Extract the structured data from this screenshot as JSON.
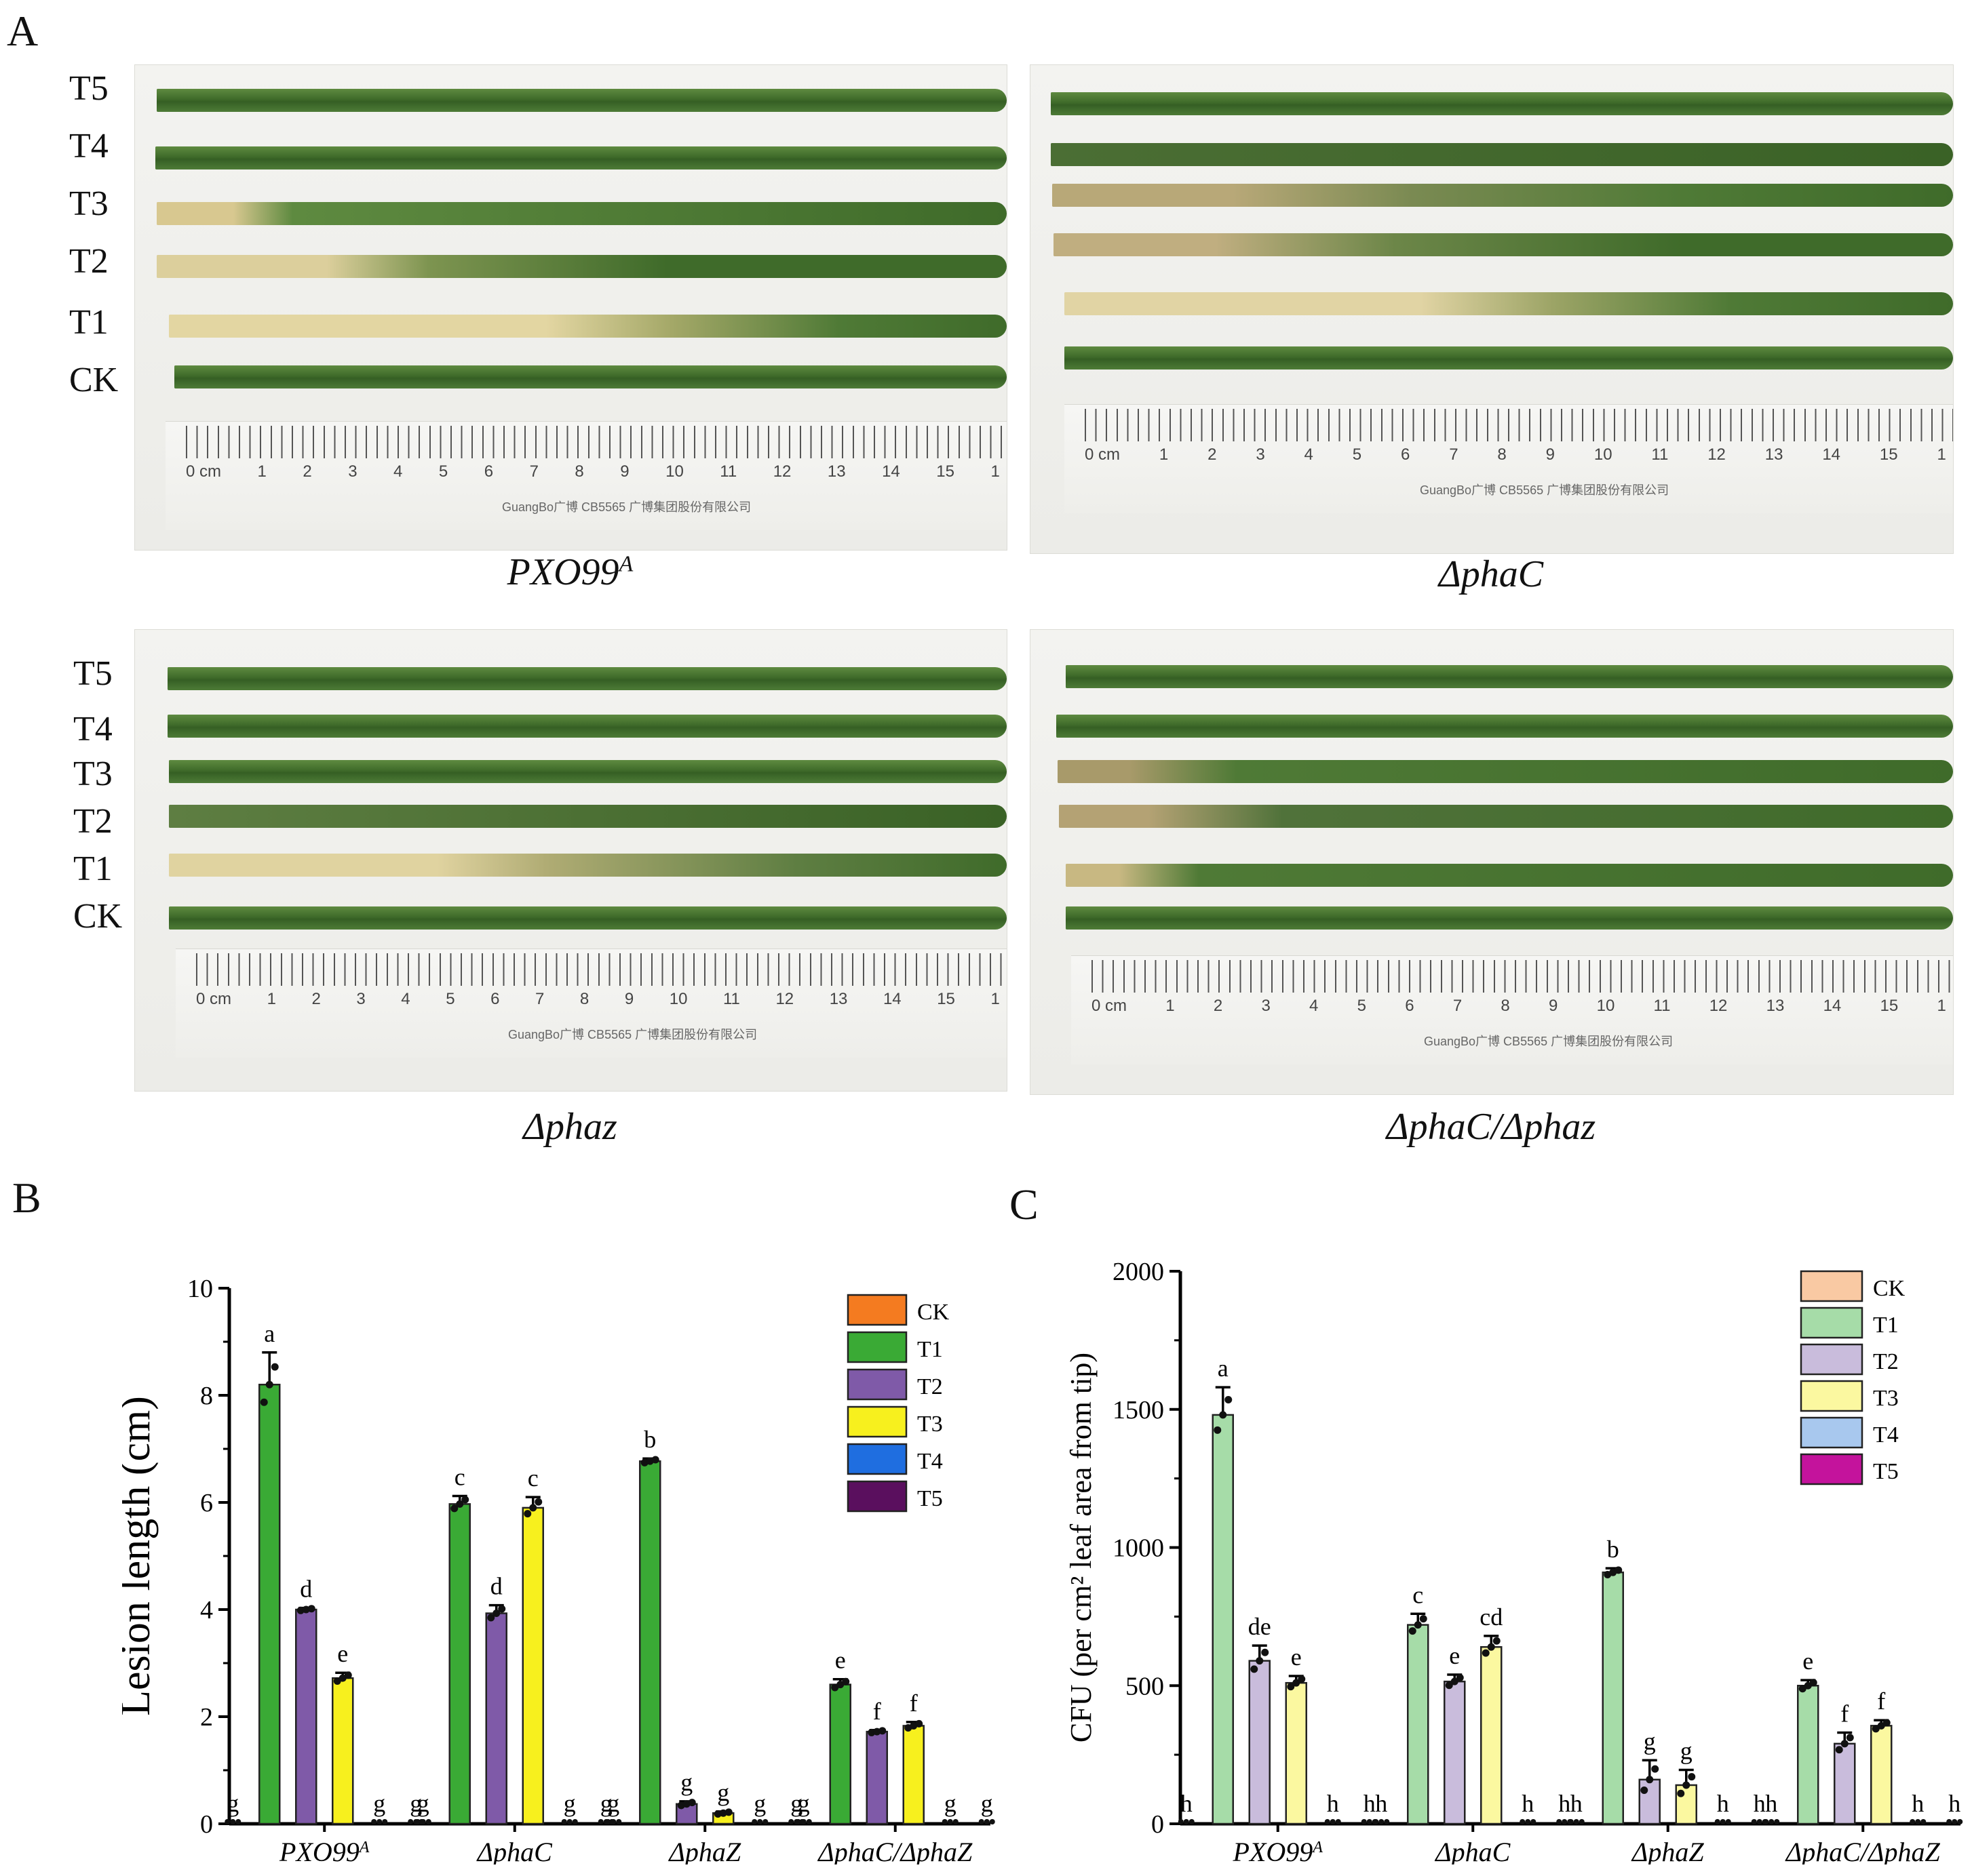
{
  "panel_labels": {
    "a": "A",
    "b": "B",
    "c": "C"
  },
  "photo_panels": [
    {
      "caption": "PXO99",
      "caption_sup": "A",
      "row_labels": [
        "T5",
        "T4",
        "T3",
        "T2",
        "T1",
        "CK"
      ],
      "ruler_unit": "0 cm",
      "ruler_numbers": [
        "1",
        "2",
        "3",
        "4",
        "5",
        "6",
        "7",
        "8",
        "9",
        "10",
        "11",
        "12",
        "13",
        "14",
        "15",
        "1"
      ],
      "brand": "GuangBo广博 CB5565 广博集团股份有限公司"
    },
    {
      "caption": "ΔphaC",
      "caption_sup": "",
      "row_labels": [],
      "ruler_unit": "0 cm",
      "ruler_numbers": [
        "1",
        "2",
        "3",
        "4",
        "5",
        "6",
        "7",
        "8",
        "9",
        "10",
        "11",
        "12",
        "13",
        "14",
        "15",
        "1"
      ],
      "brand": "GuangBo广博 CB5565 广博集团股份有限公司"
    },
    {
      "caption": "Δphaz",
      "caption_sup": "",
      "row_labels": [
        "T5",
        "T4",
        "T3",
        "T2",
        "T1",
        "CK"
      ],
      "ruler_unit": "0 cm",
      "ruler_numbers": [
        "1",
        "2",
        "3",
        "4",
        "5",
        "6",
        "7",
        "8",
        "9",
        "10",
        "11",
        "12",
        "13",
        "14",
        "15",
        "1"
      ],
      "brand": "GuangBo广博 CB5565 广博集团股份有限公司"
    },
    {
      "caption": "ΔphaC/Δphaz",
      "caption_sup": "",
      "row_labels": [],
      "ruler_unit": "0 cm",
      "ruler_numbers": [
        "1",
        "2",
        "3",
        "4",
        "5",
        "6",
        "7",
        "8",
        "9",
        "10",
        "11",
        "12",
        "13",
        "14",
        "15",
        "1"
      ],
      "brand": "GuangBo广博 CB5565 广博集团股份有限公司"
    }
  ],
  "chart_data": [
    {
      "id": "B",
      "type": "bar",
      "ylabel": "Lesion length (cm)",
      "ylim": [
        0,
        10
      ],
      "yticks": [
        0,
        2,
        4,
        6,
        8,
        10
      ],
      "categories": [
        "PXO99",
        "ΔphaC",
        "ΔphaZ",
        "ΔphaC/ΔphaZ"
      ],
      "category_sup": [
        "A",
        "",
        "",
        ""
      ],
      "legend": [
        "CK",
        "T1",
        "T2",
        "T3",
        "T4",
        "T5"
      ],
      "legend_position": "top-right",
      "colors": [
        "#f47b20",
        "#3aaa35",
        "#7f5aa8",
        "#f7f01e",
        "#1f6ee0",
        "#5a0f5e"
      ],
      "series": [
        {
          "name": "CK",
          "values": [
            0,
            0,
            0,
            0
          ],
          "sig": [
            "g",
            "g",
            "g",
            "g"
          ]
        },
        {
          "name": "T1",
          "values": [
            8.2,
            5.97,
            6.77,
            2.6
          ],
          "err": [
            0.6,
            0.15,
            0.05,
            0.1
          ],
          "sig": [
            "a",
            "c",
            "b",
            "e"
          ]
        },
        {
          "name": "T2",
          "values": [
            4.0,
            3.93,
            0.37,
            1.72
          ],
          "err": [
            0.03,
            0.15,
            0.05,
            0.03
          ],
          "sig": [
            "d",
            "d",
            "g",
            "f"
          ]
        },
        {
          "name": "T3",
          "values": [
            2.72,
            5.9,
            0.2,
            1.83
          ],
          "err": [
            0.1,
            0.2,
            0.03,
            0.07
          ],
          "sig": [
            "e",
            "c",
            "g",
            "f"
          ]
        },
        {
          "name": "T4",
          "values": [
            0,
            0,
            0,
            0
          ],
          "sig": [
            "g",
            "g",
            "g",
            "g"
          ]
        },
        {
          "name": "T5",
          "values": [
            0,
            0,
            0,
            0
          ],
          "sig": [
            "g",
            "g",
            "g",
            "g"
          ]
        }
      ]
    },
    {
      "id": "C",
      "type": "bar",
      "ylabel": "CFU (per cm² leaf area from tip)",
      "ylim": [
        0,
        2000
      ],
      "yticks": [
        0,
        500,
        1000,
        1500,
        2000
      ],
      "categories": [
        "PXO99",
        "ΔphaC",
        "ΔphaZ",
        "ΔphaC/ΔphaZ"
      ],
      "category_sup": [
        "A",
        "",
        "",
        ""
      ],
      "legend": [
        "CK",
        "T1",
        "T2",
        "T3",
        "T4",
        "T5"
      ],
      "legend_position": "top-right",
      "colors": [
        "#f9c9a3",
        "#a6dca8",
        "#c9bcdc",
        "#fbf8a0",
        "#a8c8ee",
        "#c4139c"
      ],
      "series": [
        {
          "name": "CK",
          "values": [
            0,
            0,
            0,
            0
          ],
          "sig": [
            "h",
            "h",
            "h",
            "h"
          ]
        },
        {
          "name": "T1",
          "values": [
            1480,
            720,
            910,
            500
          ],
          "err": [
            100,
            40,
            15,
            20
          ],
          "sig": [
            "a",
            "c",
            "b",
            "e"
          ]
        },
        {
          "name": "T2",
          "values": [
            590,
            515,
            160,
            290
          ],
          "err": [
            55,
            25,
            70,
            40
          ],
          "sig": [
            "de",
            "e",
            "g",
            "f"
          ]
        },
        {
          "name": "T3",
          "values": [
            510,
            640,
            140,
            355
          ],
          "err": [
            25,
            40,
            55,
            20
          ],
          "sig": [
            "e",
            "cd",
            "g",
            "f"
          ]
        },
        {
          "name": "T4",
          "values": [
            0,
            0,
            0,
            0
          ],
          "sig": [
            "h",
            "h",
            "h",
            "h"
          ]
        },
        {
          "name": "T5",
          "values": [
            0,
            0,
            0,
            0
          ],
          "sig": [
            "h",
            "h",
            "h",
            "h"
          ]
        }
      ]
    }
  ]
}
